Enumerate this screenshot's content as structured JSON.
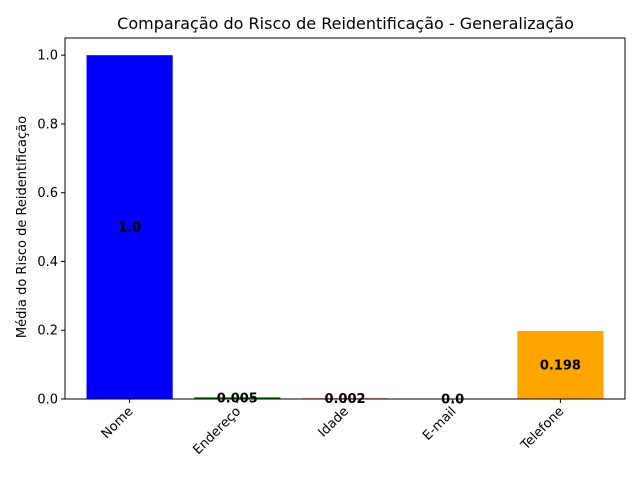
{
  "chart_data": {
    "type": "bar",
    "title": "Comparação do Risco de Reidentificação - Generalização",
    "xlabel": "",
    "ylabel": "Média do Risco de Reidentificação",
    "categories": [
      "Nome",
      "Endereço",
      "Idade",
      "E-mail",
      "Telefone"
    ],
    "values": [
      1.0,
      0.005,
      0.002,
      0.0,
      0.198
    ],
    "value_labels": [
      "1.0",
      "0.005",
      "0.002",
      "0.0",
      "0.198"
    ],
    "colors": [
      "#0000ff",
      "#008000",
      "#ff0000",
      "#800080",
      "#ffa500"
    ],
    "ylim": [
      0,
      1.05
    ],
    "yticks": [
      0.0,
      0.2,
      0.4,
      0.6,
      0.8,
      1.0
    ],
    "ytick_labels": [
      "0.0",
      "0.2",
      "0.4",
      "0.6",
      "0.8",
      "1.0"
    ],
    "xtick_rotation": 45,
    "grid": false,
    "legend": "none"
  }
}
